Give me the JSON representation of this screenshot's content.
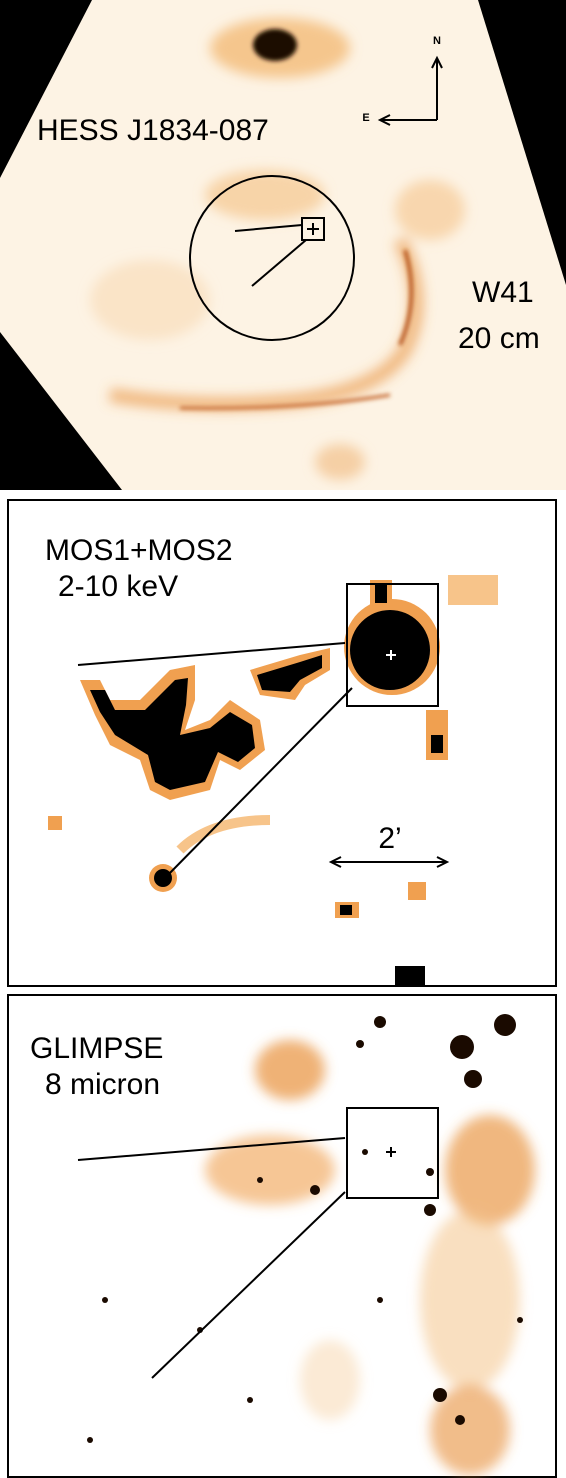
{
  "panels": [
    {
      "labels": [
        "HESS J1834-087",
        "W41",
        "20 cm"
      ],
      "compass": {
        "north": "N",
        "east": "E"
      }
    },
    {
      "labels": [
        "MOS1+MOS2",
        "2-10 keV"
      ],
      "scale": "2’"
    },
    {
      "labels": [
        "GLIMPSE",
        "8 micron"
      ]
    }
  ]
}
